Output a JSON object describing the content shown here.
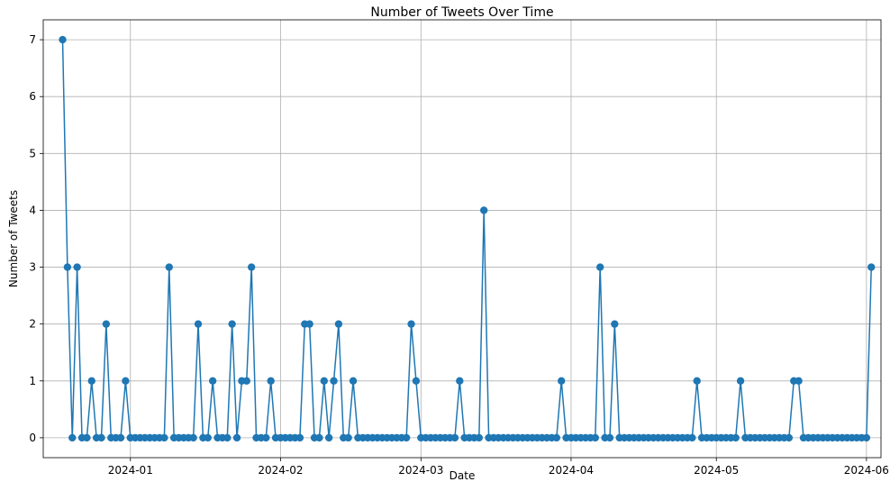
{
  "chart_data": {
    "type": "line",
    "title": "Number of Tweets Over Time",
    "xlabel": "Date",
    "ylabel": "Number of Tweets",
    "x_start": "2023-12-18",
    "x_end": "2024-05-31",
    "xlim": [
      "2023-12-14",
      "2024-06-04"
    ],
    "ylim": [
      -0.35,
      7.35
    ],
    "x_ticks": [
      "2024-01-01",
      "2024-02-01",
      "2024-03-01",
      "2024-04-01",
      "2024-05-01",
      "2024-06-01"
    ],
    "x_tick_labels": [
      "2024-01",
      "2024-02",
      "2024-03",
      "2024-04",
      "2024-05",
      "2024-06"
    ],
    "y_ticks": [
      0,
      1,
      2,
      3,
      4,
      5,
      6,
      7
    ],
    "y_tick_labels": [
      "0",
      "1",
      "2",
      "3",
      "4",
      "5",
      "6",
      "7"
    ],
    "grid": true,
    "marker": "circle",
    "color": "#1f77b4",
    "series": [
      {
        "values": [
          7,
          3,
          0,
          3,
          0,
          0,
          1,
          0,
          0,
          2,
          0,
          0,
          0,
          1,
          0,
          0,
          0,
          0,
          0,
          0,
          0,
          0,
          3,
          0,
          0,
          0,
          0,
          0,
          2,
          0,
          0,
          1,
          0,
          0,
          0,
          2,
          0,
          1,
          1,
          3,
          0,
          0,
          0,
          1,
          0,
          0,
          0,
          0,
          0,
          0,
          2,
          2,
          0,
          0,
          1,
          0,
          1,
          2,
          0,
          0,
          1,
          0,
          0,
          0,
          0,
          0,
          0,
          0,
          0,
          0,
          0,
          0,
          2,
          1,
          0,
          0,
          0,
          0,
          0,
          0,
          0,
          0,
          1,
          0,
          0,
          0,
          0,
          4,
          0,
          0,
          0,
          0,
          0,
          0,
          0,
          0,
          0,
          0,
          0,
          0,
          0,
          0,
          0,
          1,
          0,
          0,
          0,
          0,
          0,
          0,
          0,
          3,
          0,
          0,
          2,
          0,
          0,
          0,
          0,
          0,
          0,
          0,
          0,
          0,
          0,
          0,
          0,
          0,
          0,
          0,
          0,
          1,
          0,
          0,
          0,
          0,
          0,
          0,
          0,
          0,
          1,
          0,
          0,
          0,
          0,
          0,
          0,
          0,
          0,
          0,
          0,
          1,
          1,
          0,
          0,
          0,
          0,
          0,
          0,
          0,
          0,
          0,
          0,
          0,
          0,
          0,
          0,
          3
        ]
      }
    ]
  }
}
